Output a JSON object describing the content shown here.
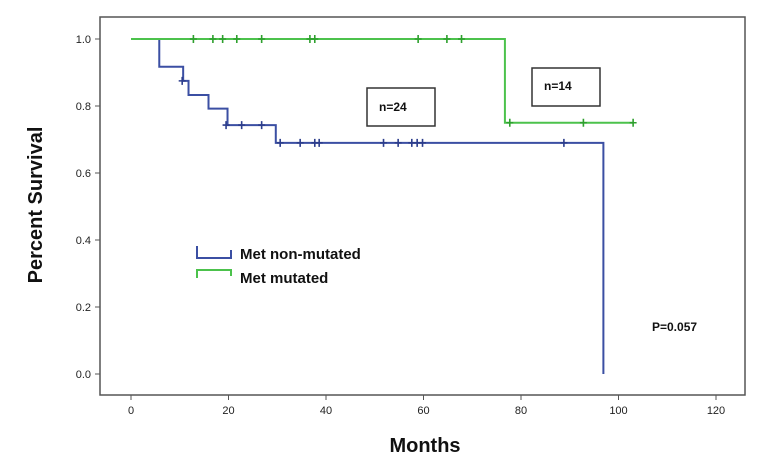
{
  "chart_data": {
    "type": "line",
    "subtype": "kaplan-meier step",
    "title": "",
    "xlabel": "Months",
    "ylabel": "Percent Survival",
    "xlim": [
      -6,
      126
    ],
    "ylim": [
      -0.05,
      1.08
    ],
    "x_ticks": [
      "0",
      "20",
      "40",
      "60",
      "80",
      "100",
      "120"
    ],
    "y_ticks": [
      "0.0",
      "0.2",
      "0.4",
      "0.6",
      "0.8",
      "1.0"
    ],
    "grid": false,
    "legend_position": "center-left",
    "series": [
      {
        "name": "Met non-mutated",
        "color": "#3b4fa3",
        "steps": [
          [
            0,
            1.0
          ],
          [
            5.8,
            0.917
          ],
          [
            10.7,
            0.875
          ],
          [
            11.8,
            0.833
          ],
          [
            15.9,
            0.792
          ],
          [
            19.8,
            0.743
          ],
          [
            29.7,
            0.69
          ],
          [
            96.9,
            0.0
          ]
        ],
        "end_x": 96.9,
        "censored": [
          [
            10.5,
            0.875
          ],
          [
            19.5,
            0.743
          ],
          [
            22.7,
            0.743
          ],
          [
            26.8,
            0.743
          ],
          [
            30.6,
            0.69
          ],
          [
            34.7,
            0.69
          ],
          [
            37.7,
            0.69
          ],
          [
            38.6,
            0.69
          ],
          [
            51.8,
            0.69
          ],
          [
            54.8,
            0.69
          ],
          [
            57.6,
            0.69
          ],
          [
            58.7,
            0.69
          ],
          [
            59.8,
            0.69
          ],
          [
            88.8,
            0.69
          ]
        ]
      },
      {
        "name": "Met mutated",
        "color": "#4cc24c",
        "steps": [
          [
            0,
            1.0
          ],
          [
            76.7,
            0.75
          ]
        ],
        "end_x": 103,
        "censored": [
          [
            12.8,
            1.0
          ],
          [
            16.8,
            1.0
          ],
          [
            18.8,
            1.0
          ],
          [
            21.7,
            1.0
          ],
          [
            26.8,
            1.0
          ],
          [
            36.7,
            1.0
          ],
          [
            37.7,
            1.0
          ],
          [
            58.9,
            1.0
          ],
          [
            64.8,
            1.0
          ],
          [
            67.8,
            1.0
          ],
          [
            77.7,
            0.75
          ],
          [
            92.8,
            0.75
          ],
          [
            103,
            0.75
          ]
        ]
      }
    ],
    "annotations": {
      "n_non_mutated": "n=24",
      "n_mutated": "n=14",
      "p_value": "P=0.057"
    }
  }
}
